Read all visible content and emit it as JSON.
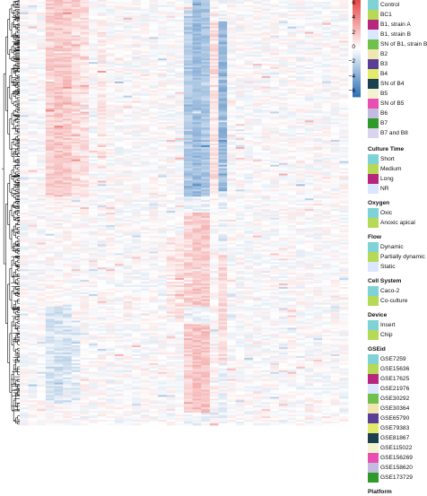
{
  "chart_data": {
    "type": "heatmap",
    "colorbar": {
      "min": -6,
      "max": 6,
      "ticks": [
        "6",
        "4",
        "2",
        "0",
        "−2",
        "−4",
        "−6"
      ],
      "colors": [
        "#2f72b8",
        "#ffffff",
        "#e64a4a"
      ]
    },
    "annotations": [
      {
        "title": "",
        "items": [
          {
            "label": "Control",
            "color": "#7fd3d7"
          },
          {
            "label": "BC1",
            "color": "#b6d956"
          },
          {
            "label": "B1, strain A",
            "color": "#b5267c"
          },
          {
            "label": "B1, strain B",
            "color": "#dbe6ff"
          },
          {
            "label": "SN of B1, strain B",
            "color": "#6fc04d"
          },
          {
            "label": "B2",
            "color": "#f0e6b0"
          },
          {
            "label": "B3",
            "color": "#5b3f96"
          },
          {
            "label": "B4",
            "color": "#e3eb6b"
          },
          {
            "label": "SN of B4",
            "color": "#1d4050"
          },
          {
            "label": "B5",
            "color": "#f3f3d0"
          },
          {
            "label": "SN of B5",
            "color": "#e94fb1"
          },
          {
            "label": "B6",
            "color": "#c3bbe0"
          },
          {
            "label": "B7",
            "color": "#2d9a2a"
          },
          {
            "label": "B7 and B8",
            "color": "#dcd4ef"
          }
        ]
      },
      {
        "title": "Culture Time",
        "items": [
          {
            "label": "Short",
            "color": "#7fd3d7"
          },
          {
            "label": "Medium",
            "color": "#b6d956"
          },
          {
            "label": "Long",
            "color": "#b5267c"
          },
          {
            "label": "NR",
            "color": "#dbe6ff"
          }
        ]
      },
      {
        "title": "Oxygen",
        "items": [
          {
            "label": "Oxic",
            "color": "#7fd3d7"
          },
          {
            "label": "Anoxic apical",
            "color": "#b6d956"
          }
        ]
      },
      {
        "title": "Flow",
        "items": [
          {
            "label": "Dynamic",
            "color": "#7fd3d7"
          },
          {
            "label": "Partially dynamic",
            "color": "#b6d956"
          },
          {
            "label": "Static",
            "color": "#dbe6ff"
          }
        ]
      },
      {
        "title": "Cell System",
        "items": [
          {
            "label": "Caco-2",
            "color": "#7fd3d7"
          },
          {
            "label": "Co-culture",
            "color": "#b6d956"
          }
        ]
      },
      {
        "title": "Device",
        "items": [
          {
            "label": "Insert",
            "color": "#7fd3d7"
          },
          {
            "label": "Chip",
            "color": "#b6d956"
          }
        ]
      },
      {
        "title": "GSEid",
        "items": [
          {
            "label": "GSE7259",
            "color": "#7fd3d7"
          },
          {
            "label": "GSE15636",
            "color": "#b6d956"
          },
          {
            "label": "GSE17625",
            "color": "#b5267c"
          },
          {
            "label": "GSE21976",
            "color": "#dbe6ff"
          },
          {
            "label": "GSE30292",
            "color": "#6fc04d"
          },
          {
            "label": "GSE30364",
            "color": "#f0e6b0"
          },
          {
            "label": "GSE65790",
            "color": "#5b3f96"
          },
          {
            "label": "GSE79383",
            "color": "#e3eb6b"
          },
          {
            "label": "GSE81867",
            "color": "#1d4050"
          },
          {
            "label": "GSE115022",
            "color": "#f3f3d0"
          },
          {
            "label": "GSE156269",
            "color": "#e94fb1"
          },
          {
            "label": "GSE158620",
            "color": "#c3bbe0"
          },
          {
            "label": "GSE173729",
            "color": "#2d9a2a"
          }
        ]
      },
      {
        "title": "Platform",
        "items": []
      }
    ],
    "columns": [
      {
        "mean": 0.0,
        "blocks": []
      },
      {
        "mean": 0.0,
        "blocks": []
      },
      {
        "mean": 0.0,
        "blocks": []
      },
      {
        "mean": 0.15,
        "blocks": [
          {
            "from": 0.0,
            "to": 0.46,
            "value": 1.6
          },
          {
            "from": 0.72,
            "to": 0.95,
            "value": -1.0
          }
        ]
      },
      {
        "mean": 0.15,
        "blocks": [
          {
            "from": 0.0,
            "to": 0.46,
            "value": 1.8
          },
          {
            "from": 0.72,
            "to": 0.95,
            "value": -1.2
          }
        ]
      },
      {
        "mean": 0.15,
        "blocks": [
          {
            "from": 0.0,
            "to": 0.46,
            "value": 1.7
          },
          {
            "from": 0.72,
            "to": 0.95,
            "value": -1.1
          }
        ]
      },
      {
        "mean": 0.1,
        "blocks": [
          {
            "from": 0.0,
            "to": 0.46,
            "value": 1.2
          },
          {
            "from": 0.75,
            "to": 0.95,
            "value": -0.8
          }
        ]
      },
      {
        "mean": 0.1,
        "blocks": [
          {
            "from": 0.0,
            "to": 0.46,
            "value": 1.0
          }
        ]
      },
      {
        "mean": 0.0,
        "blocks": []
      },
      {
        "mean": 0.1,
        "blocks": [
          {
            "from": 0.05,
            "to": 0.4,
            "value": 0.7
          }
        ]
      },
      {
        "mean": 0.0,
        "blocks": []
      },
      {
        "mean": 0.0,
        "blocks": []
      },
      {
        "mean": 0.0,
        "blocks": []
      },
      {
        "mean": 0.0,
        "blocks": []
      },
      {
        "mean": 0.0,
        "blocks": []
      },
      {
        "mean": 0.0,
        "blocks": []
      },
      {
        "mean": 0.0,
        "blocks": []
      },
      {
        "mean": 0.0,
        "blocks": [
          {
            "from": 0.55,
            "to": 0.75,
            "value": 0.8
          }
        ]
      },
      {
        "mean": 0.0,
        "blocks": [
          {
            "from": 0.55,
            "to": 0.75,
            "value": 0.9
          }
        ]
      },
      {
        "mean": -0.3,
        "blocks": [
          {
            "from": 0.02,
            "to": 0.46,
            "value": -2.2
          },
          {
            "from": 0.5,
            "to": 0.72,
            "value": 1.4
          },
          {
            "from": 0.76,
            "to": 0.97,
            "value": 1.6
          }
        ]
      },
      {
        "mean": -0.3,
        "blocks": [
          {
            "from": 0.0,
            "to": 0.46,
            "value": -2.8
          },
          {
            "from": 0.5,
            "to": 0.72,
            "value": 1.8
          },
          {
            "from": 0.76,
            "to": 0.97,
            "value": 2.0
          }
        ]
      },
      {
        "mean": -0.3,
        "blocks": [
          {
            "from": 0.0,
            "to": 0.46,
            "value": -2.4
          },
          {
            "from": 0.5,
            "to": 0.72,
            "value": 1.6
          },
          {
            "from": 0.76,
            "to": 0.97,
            "value": 1.9
          }
        ]
      },
      {
        "mean": 0.2,
        "blocks": [
          {
            "from": 0.05,
            "to": 0.45,
            "value": 1.0
          }
        ]
      },
      {
        "mean": -0.4,
        "blocks": [
          {
            "from": 0.05,
            "to": 0.45,
            "value": -3.0
          },
          {
            "from": 0.6,
            "to": 0.85,
            "value": 1.2
          }
        ]
      },
      {
        "mean": 0.0,
        "blocks": []
      },
      {
        "mean": 0.0,
        "blocks": []
      },
      {
        "mean": 0.0,
        "blocks": []
      },
      {
        "mean": 0.0,
        "blocks": []
      },
      {
        "mean": 0.0,
        "blocks": []
      },
      {
        "mean": 0.0,
        "blocks": []
      },
      {
        "mean": 0.0,
        "blocks": []
      },
      {
        "mean": 0.0,
        "blocks": []
      },
      {
        "mean": 0.0,
        "blocks": []
      },
      {
        "mean": 0.0,
        "blocks": []
      },
      {
        "mean": 0.0,
        "blocks": []
      },
      {
        "mean": 0.0,
        "blocks": []
      },
      {
        "mean": 0.0,
        "blocks": []
      },
      {
        "mean": 0.0,
        "blocks": []
      }
    ]
  }
}
